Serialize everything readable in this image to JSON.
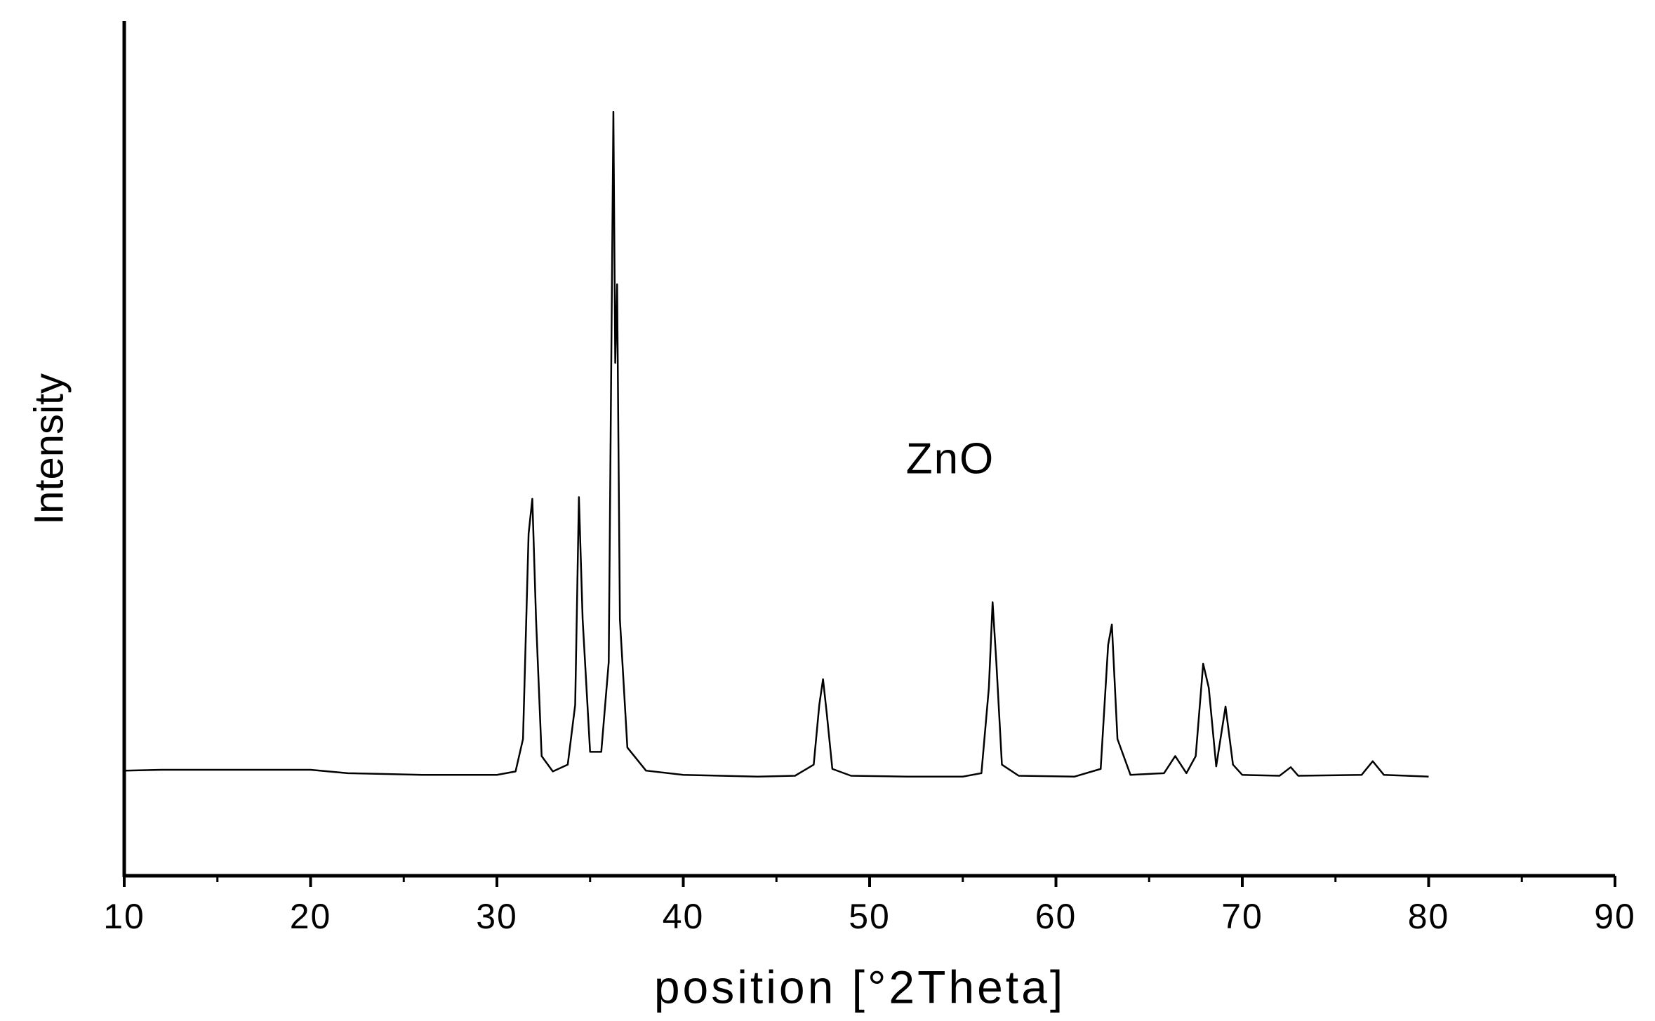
{
  "chart_data": {
    "type": "line",
    "annotation": "ZnO",
    "x_label": "position [°2Theta]",
    "y_label": "Intensity",
    "x": [
      10,
      12,
      14,
      16,
      18,
      20,
      22,
      24,
      26,
      28,
      30,
      31,
      31.4,
      31.7,
      31.9,
      32.1,
      32.4,
      33,
      33.8,
      34.2,
      34.4,
      34.6,
      35,
      35.6,
      36.0,
      36.25,
      36.35,
      36.45,
      36.6,
      37,
      38,
      40,
      44,
      46,
      47,
      47.3,
      47.5,
      47.7,
      48,
      49,
      52,
      55,
      56,
      56.4,
      56.6,
      56.8,
      57.1,
      58,
      61,
      62.4,
      62.8,
      63.0,
      63.3,
      64,
      65.8,
      66.4,
      67,
      67.5,
      67.9,
      68.2,
      68.6,
      69.1,
      69.5,
      70,
      72,
      72.6,
      73,
      76.4,
      77.0,
      77.6,
      80
    ],
    "values": [
      12.3,
      12.4,
      12.4,
      12.4,
      12.4,
      12.4,
      12.0,
      11.9,
      11.8,
      11.8,
      11.8,
      12.2,
      16,
      40,
      44.1,
      30,
      14,
      12.2,
      13,
      20,
      44.3,
      30,
      14.5,
      14.5,
      25,
      89.4,
      60,
      69.2,
      30,
      15,
      12.3,
      11.8,
      11.6,
      11.7,
      13,
      20,
      23,
      19,
      12.5,
      11.7,
      11.6,
      11.6,
      12,
      22,
      32,
      25,
      13,
      11.7,
      11.6,
      12.5,
      27,
      29.4,
      16,
      11.8,
      12,
      14,
      12,
      14,
      24.8,
      22,
      12.8,
      19.8,
      13,
      11.8,
      11.7,
      12.7,
      11.7,
      11.8,
      13.4,
      11.8,
      11.6
    ],
    "color": "#000000",
    "xlim": [
      10,
      90
    ],
    "xticks": [
      10,
      20,
      30,
      40,
      50,
      60,
      70,
      80,
      90
    ],
    "ylim": [
      0,
      100
    ]
  }
}
